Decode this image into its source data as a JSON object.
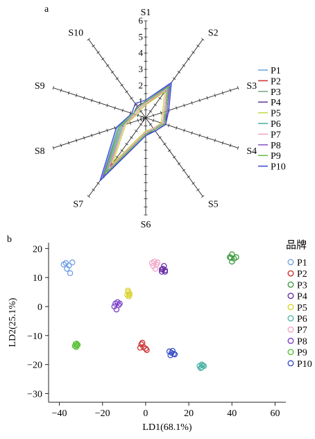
{
  "chart_data": [
    {
      "type": "radar",
      "panel_label": "a",
      "axes": [
        "S1",
        "S2",
        "S3",
        "S4",
        "S5",
        "S6",
        "S7",
        "S8",
        "S9",
        "S10"
      ],
      "r_ticks": [
        "1",
        "2",
        "3",
        "4",
        "5",
        "6"
      ],
      "r_max": 6,
      "center_label": "0",
      "series": [
        {
          "name": "P1",
          "color": "#6fa8dc",
          "values": [
            1.0,
            2.6,
            1.4,
            1.2,
            0.9,
            1.0,
            4.6,
            1.8,
            0.8,
            0.8
          ]
        },
        {
          "name": "P2",
          "color": "#cc3b3b",
          "values": [
            0.8,
            2.2,
            1.2,
            1.1,
            0.8,
            0.9,
            3.8,
            1.4,
            0.6,
            0.6
          ]
        },
        {
          "name": "P3",
          "color": "#7fa98b",
          "values": [
            0.9,
            2.4,
            1.3,
            1.2,
            0.9,
            1.0,
            4.2,
            1.6,
            0.7,
            0.7
          ]
        },
        {
          "name": "P4",
          "color": "#6b3fa0",
          "values": [
            1.0,
            2.5,
            1.4,
            1.3,
            1.0,
            1.0,
            4.4,
            1.7,
            0.8,
            0.9
          ]
        },
        {
          "name": "P5",
          "color": "#c6d94a",
          "values": [
            0.8,
            2.0,
            1.1,
            1.0,
            0.8,
            0.8,
            3.5,
            1.3,
            0.6,
            0.6
          ]
        },
        {
          "name": "P6",
          "color": "#4fb3a6",
          "values": [
            0.9,
            2.3,
            1.3,
            1.1,
            0.9,
            0.9,
            4.0,
            1.5,
            0.7,
            0.7
          ]
        },
        {
          "name": "P7",
          "color": "#f2a6c8",
          "values": [
            0.9,
            2.2,
            1.2,
            1.1,
            0.8,
            0.9,
            3.9,
            1.4,
            0.7,
            0.7
          ]
        },
        {
          "name": "P8",
          "color": "#8a5cc7",
          "values": [
            1.0,
            2.5,
            1.4,
            1.2,
            0.9,
            1.0,
            4.5,
            1.7,
            0.8,
            0.8
          ]
        },
        {
          "name": "P9",
          "color": "#6cc04a",
          "values": [
            1.0,
            2.4,
            1.3,
            1.2,
            0.9,
            1.0,
            4.3,
            1.7,
            0.8,
            0.8
          ]
        },
        {
          "name": "P10",
          "color": "#3f4fd0",
          "values": [
            1.1,
            2.7,
            1.5,
            1.3,
            1.0,
            1.1,
            4.8,
            1.9,
            0.9,
            1.1
          ]
        }
      ]
    },
    {
      "type": "scatter",
      "panel_label": "b",
      "xlabel": "LD1(68.1%)",
      "ylabel": "LD2(25.1%)",
      "xlim": [
        -45,
        65
      ],
      "ylim": [
        -33,
        22
      ],
      "xticks": [
        -40,
        -20,
        0,
        20,
        40,
        60
      ],
      "yticks": [
        -30,
        -20,
        -10,
        0,
        10,
        20
      ],
      "legend_title": "品牌",
      "series": [
        {
          "name": "P1",
          "color": "#6f9fe6",
          "points": [
            [
              -37,
              15
            ],
            [
              -35.5,
              14.2
            ],
            [
              -34,
              15.2
            ],
            [
              -36.5,
              13
            ],
            [
              -35,
              11.5
            ],
            [
              -38,
              14.5
            ]
          ]
        },
        {
          "name": "P2",
          "color": "#cc3333",
          "points": [
            [
              -2,
              -13
            ],
            [
              -1,
              -14
            ],
            [
              0,
              -14.5
            ],
            [
              -2.5,
              -14.2
            ],
            [
              -1.5,
              -12.5
            ],
            [
              0.5,
              -15
            ]
          ]
        },
        {
          "name": "P3",
          "color": "#3e9b3e",
          "points": [
            [
              39,
              17
            ],
            [
              40,
              18
            ],
            [
              41,
              16.5
            ],
            [
              40,
              15.5
            ],
            [
              39.5,
              16.8
            ],
            [
              42,
              17
            ]
          ]
        },
        {
          "name": "P4",
          "color": "#6a2fa8",
          "points": [
            [
              7.5,
              12
            ],
            [
              8,
              13
            ],
            [
              9,
              12.5
            ],
            [
              8.5,
              14
            ],
            [
              7.5,
              12.8
            ],
            [
              9,
              12
            ]
          ]
        },
        {
          "name": "P5",
          "color": "#d9d431",
          "points": [
            [
              -8,
              5
            ],
            [
              -7.5,
              4.5
            ],
            [
              -8.5,
              4
            ],
            [
              -7.8,
              3.5
            ],
            [
              -8.2,
              5.5
            ],
            [
              -7.5,
              4
            ]
          ]
        },
        {
          "name": "P6",
          "color": "#4fb3a6",
          "points": [
            [
              25,
              -20.5
            ],
            [
              26,
              -21
            ],
            [
              27,
              -20.5
            ],
            [
              26,
              -20
            ],
            [
              25.5,
              -21.2
            ],
            [
              26.5,
              -20.3
            ]
          ]
        },
        {
          "name": "P7",
          "color": "#f2a6c8",
          "points": [
            [
              3,
              15
            ],
            [
              4,
              15.5
            ],
            [
              5,
              14.5
            ],
            [
              3.5,
              14
            ],
            [
              4.5,
              13
            ],
            [
              5.5,
              15.2
            ]
          ]
        },
        {
          "name": "P8",
          "color": "#7a3fc8",
          "points": [
            [
              -14,
              1
            ],
            [
              -13,
              1.5
            ],
            [
              -12.5,
              0.5
            ],
            [
              -14.5,
              0
            ],
            [
              -13.5,
              -1
            ],
            [
              -12,
              1
            ]
          ]
        },
        {
          "name": "P9",
          "color": "#5cc03a",
          "points": [
            [
              -32.5,
              -13
            ],
            [
              -31.8,
              -13.5
            ],
            [
              -32.2,
              -14
            ],
            [
              -31.5,
              -13.2
            ],
            [
              -32.8,
              -13.6
            ],
            [
              -32,
              -12.8
            ]
          ]
        },
        {
          "name": "P10",
          "color": "#3a4fc8",
          "points": [
            [
              11,
              -15.5
            ],
            [
              12,
              -16
            ],
            [
              13,
              -16.3
            ],
            [
              11.5,
              -16.8
            ],
            [
              12.5,
              -15.3
            ],
            [
              13.5,
              -16.5
            ]
          ]
        }
      ]
    }
  ]
}
